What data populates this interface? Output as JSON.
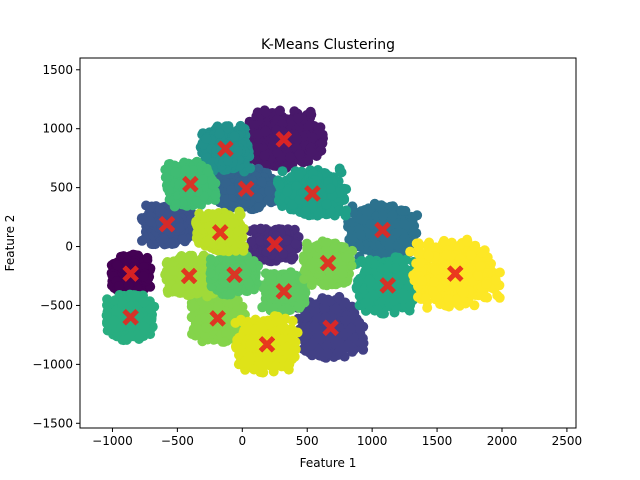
{
  "chart_data": {
    "type": "scatter",
    "title": "K-Means Clustering",
    "xlabel": "Feature 1",
    "ylabel": "Feature 2",
    "xlim": [
      -1250,
      2570
    ],
    "ylim": [
      -1540,
      1600
    ],
    "xticks": [
      -1000,
      -500,
      0,
      500,
      1000,
      1500,
      2000,
      2500
    ],
    "yticks": [
      -1500,
      -1000,
      -500,
      0,
      500,
      1000,
      1500
    ],
    "xtick_labels": [
      "−1000",
      "−500",
      "0",
      "500",
      "1000",
      "1500",
      "2000",
      "2500"
    ],
    "ytick_labels": [
      "−1500",
      "−1000",
      "−500",
      "0",
      "500",
      "1000",
      "1500"
    ],
    "grid": false,
    "legend": "none",
    "point_colormap": "viridis",
    "centroid_marker": "X",
    "centroid_color": "#e8261e",
    "clusters": [
      {
        "centroid": [
          -860,
          -230
        ],
        "spread": [
          115,
          120
        ],
        "color": "#440154"
      },
      {
        "centroid": [
          320,
          910
        ],
        "spread": [
          230,
          185
        ],
        "color": "#48186a"
      },
      {
        "centroid": [
          250,
          20
        ],
        "spread": [
          140,
          110
        ],
        "color": "#472d7b"
      },
      {
        "centroid": [
          680,
          -690
        ],
        "spread": [
          190,
          200
        ],
        "color": "#424086"
      },
      {
        "centroid": [
          -580,
          190
        ],
        "spread": [
          145,
          130
        ],
        "color": "#3b528b"
      },
      {
        "centroid": [
          30,
          490
        ],
        "spread": [
          165,
          130
        ],
        "color": "#33638d"
      },
      {
        "centroid": [
          1080,
          140
        ],
        "spread": [
          200,
          170
        ],
        "color": "#2c728e"
      },
      {
        "centroid": [
          -130,
          830
        ],
        "spread": [
          145,
          145
        ],
        "color": "#21918c"
      },
      {
        "centroid": [
          -860,
          -600
        ],
        "spread": [
          140,
          145
        ],
        "color": "#28ae80"
      },
      {
        "centroid": [
          540,
          450
        ],
        "spread": [
          200,
          150
        ],
        "color": "#1fa088"
      },
      {
        "centroid": [
          1120,
          -330
        ],
        "spread": [
          180,
          180
        ],
        "color": "#22a884"
      },
      {
        "centroid": [
          -400,
          530
        ],
        "spread": [
          145,
          145
        ],
        "color": "#3fbc73"
      },
      {
        "centroid": [
          320,
          -380
        ],
        "spread": [
          125,
          125
        ],
        "color": "#5ec962"
      },
      {
        "centroid": [
          -190,
          -610
        ],
        "spread": [
          160,
          150
        ],
        "color": "#84d44b"
      },
      {
        "centroid": [
          660,
          -140
        ],
        "spread": [
          140,
          140
        ],
        "color": "#7ad151"
      },
      {
        "centroid": [
          -410,
          -250
        ],
        "spread": [
          140,
          130
        ],
        "color": "#a0da39"
      },
      {
        "centroid": [
          -60,
          -240
        ],
        "spread": [
          140,
          125
        ],
        "color": "#55c667"
      },
      {
        "centroid": [
          -170,
          120
        ],
        "spread": [
          140,
          125
        ],
        "color": "#bddf26"
      },
      {
        "centroid": [
          190,
          -830
        ],
        "spread": [
          180,
          180
        ],
        "color": "#dfe318"
      },
      {
        "centroid": [
          1640,
          -230
        ],
        "spread": [
          260,
          220
        ],
        "color": "#fde725"
      }
    ]
  }
}
